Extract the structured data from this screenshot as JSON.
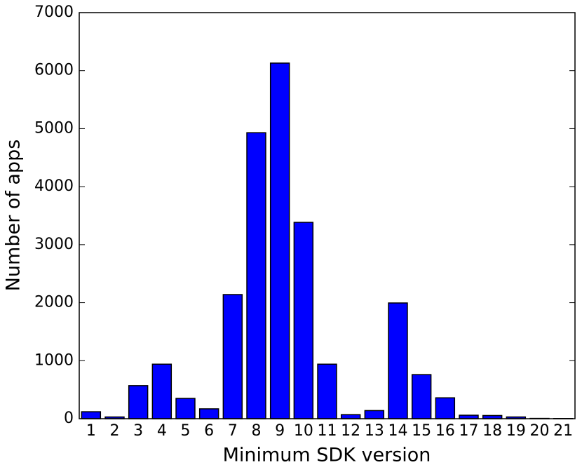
{
  "chart_data": {
    "type": "bar",
    "x_label": "Minimum SDK version",
    "y_label": "Number of apps",
    "categories": [
      "1",
      "2",
      "3",
      "4",
      "5",
      "6",
      "7",
      "8",
      "9",
      "10",
      "11",
      "12",
      "13",
      "14",
      "15",
      "16",
      "17",
      "18",
      "19",
      "20",
      "21"
    ],
    "values": [
      120,
      30,
      570,
      940,
      350,
      170,
      2140,
      4930,
      6130,
      3385,
      940,
      70,
      140,
      1995,
      760,
      360,
      60,
      55,
      30,
      5,
      3
    ],
    "color": "#0000ff",
    "ylim": [
      0,
      7000
    ],
    "yticks": [
      0,
      1000,
      2000,
      3000,
      4000,
      5000,
      6000,
      7000
    ],
    "grid": false
  }
}
